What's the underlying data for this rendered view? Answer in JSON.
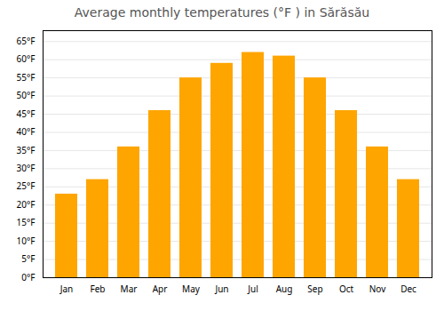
{
  "chart_data": {
    "type": "bar",
    "title": "Average monthly temperatures (°F ) in Sărăsău",
    "categories": [
      "Jan",
      "Feb",
      "Mar",
      "Apr",
      "May",
      "Jun",
      "Jul",
      "Aug",
      "Sep",
      "Oct",
      "Nov",
      "Dec"
    ],
    "values": [
      23,
      27,
      36,
      46,
      55,
      59,
      62,
      61,
      55,
      46,
      36,
      27
    ],
    "color": "#FFA500",
    "ylim": [
      0,
      68
    ],
    "yticks": [
      {
        "value": 0,
        "label": "0°F"
      },
      {
        "value": 5,
        "label": "5°F"
      },
      {
        "value": 10,
        "label": "10°F"
      },
      {
        "value": 15,
        "label": "15°F"
      },
      {
        "value": 20,
        "label": "20°F"
      },
      {
        "value": 25,
        "label": "25°F"
      },
      {
        "value": 30,
        "label": "30°F"
      },
      {
        "value": 35,
        "label": "35°F"
      },
      {
        "value": 40,
        "label": "40°F"
      },
      {
        "value": 45,
        "label": "45°F"
      },
      {
        "value": 50,
        "label": "50°F"
      },
      {
        "value": 55,
        "label": "55°F"
      },
      {
        "value": 60,
        "label": "60°F"
      },
      {
        "value": 65,
        "label": "65°F"
      }
    ],
    "grid": true
  }
}
